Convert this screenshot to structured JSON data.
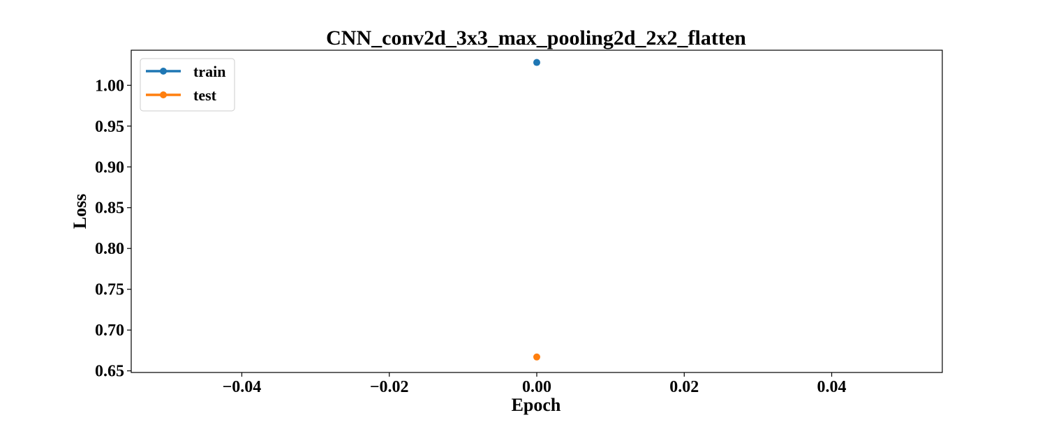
{
  "chart_data": {
    "type": "line",
    "title": "CNN_conv2d_3x3_max_pooling2d_2x2_flatten",
    "xlabel": "Epoch",
    "ylabel": "Loss",
    "xlim": [
      -0.055,
      0.055
    ],
    "ylim": [
      0.648,
      1.043
    ],
    "x_ticks": [
      -0.04,
      -0.02,
      0.0,
      0.02,
      0.04
    ],
    "x_tick_labels": [
      "−0.04",
      "−0.02",
      "0.00",
      "0.02",
      "0.04"
    ],
    "y_ticks": [
      0.65,
      0.7,
      0.75,
      0.8,
      0.85,
      0.9,
      0.95,
      1.0
    ],
    "y_tick_labels": [
      "0.65",
      "0.70",
      "0.75",
      "0.80",
      "0.85",
      "0.90",
      "0.95",
      "1.00"
    ],
    "grid": false,
    "legend_position": "top-left",
    "series": [
      {
        "name": "train",
        "color": "#1f77b4",
        "x": [
          0
        ],
        "y": [
          1.028
        ]
      },
      {
        "name": "test",
        "color": "#ff7f0e",
        "x": [
          0
        ],
        "y": [
          0.667
        ]
      }
    ]
  }
}
